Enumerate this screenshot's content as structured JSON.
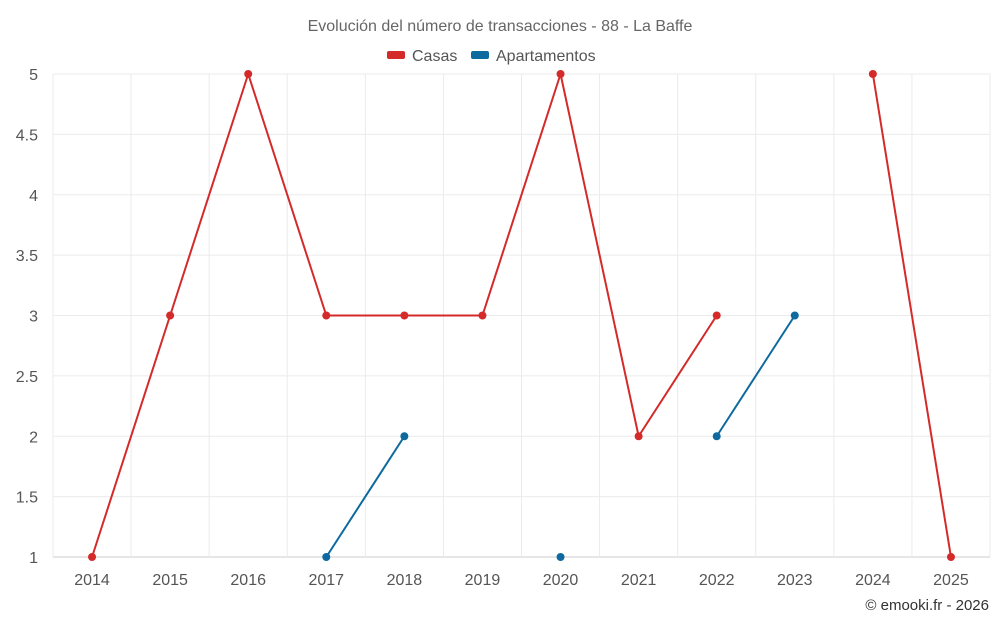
{
  "chart_data": {
    "type": "line",
    "title": "Evolución del número de transacciones - 88 - La Baffe",
    "xlabel": "",
    "ylabel": "",
    "categories": [
      "2014",
      "2015",
      "2016",
      "2017",
      "2018",
      "2019",
      "2020",
      "2021",
      "2022",
      "2023",
      "2024",
      "2025"
    ],
    "ylim": [
      1,
      5
    ],
    "yticks": [
      "1",
      "1.5",
      "2",
      "2.5",
      "3",
      "3.5",
      "4",
      "4.5",
      "5"
    ],
    "grid": true,
    "legend_position": "top-center",
    "series": [
      {
        "name": "Casas",
        "color": "#d42a2a",
        "values": [
          1,
          3,
          5,
          3,
          3,
          3,
          5,
          2,
          3,
          null,
          5,
          1
        ]
      },
      {
        "name": "Apartamentos",
        "color": "#0e6a9e",
        "values": [
          null,
          null,
          null,
          1,
          2,
          null,
          1,
          null,
          2,
          3,
          null,
          null
        ]
      }
    ]
  },
  "credit": "© emooki.fr - 2026"
}
